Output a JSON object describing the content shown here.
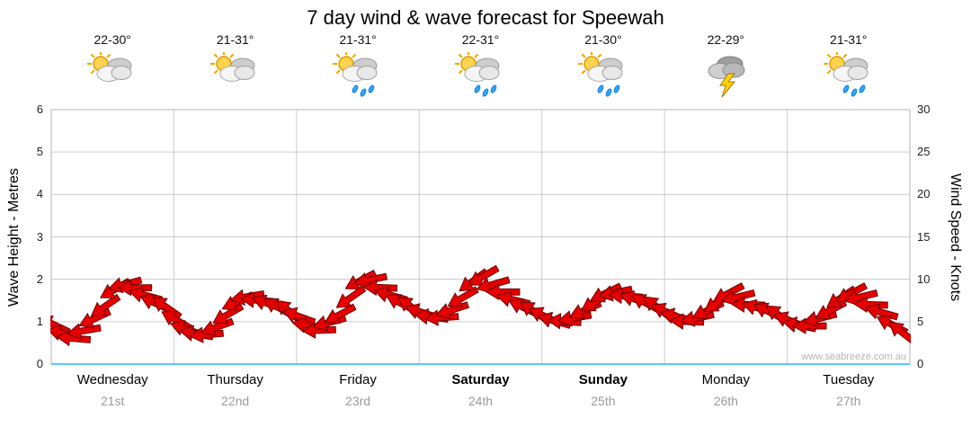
{
  "title": "7 day wind & wave forecast for Speewah",
  "chart_data": {
    "type": "wind-barb-series",
    "title": "7 day wind & wave forecast for Speewah",
    "watermark": "www.seabreeze.com.au",
    "left_axis": {
      "label": "Wave Height - Metres",
      "min": 0,
      "max": 6,
      "ticks": [
        0,
        1,
        2,
        3,
        4,
        5,
        6
      ]
    },
    "right_axis": {
      "label": "Wind Speed - Knots",
      "min": 0,
      "max": 30,
      "ticks": [
        0,
        5,
        10,
        15,
        20,
        25,
        30
      ]
    },
    "grid": true,
    "arrow_color": "#e60000",
    "arrow_outline": "#6e0000",
    "days": [
      {
        "name": "Wednesday",
        "date": "21st",
        "bold": false,
        "temps": "22-30°",
        "icon": "partly-cloudy",
        "wind_knots": [
          4.5,
          3.5,
          3,
          4,
          5.5,
          7,
          9,
          9.5,
          9,
          8,
          7,
          6.5
        ],
        "wind_dir_deg": [
          205,
          195,
          185,
          170,
          155,
          145,
          150,
          165,
          180,
          195,
          205,
          215
        ]
      },
      {
        "name": "Thursday",
        "date": "22nd",
        "bold": false,
        "temps": "21-31°",
        "icon": "partly-cloudy",
        "wind_knots": [
          5,
          4,
          3.5,
          3.5,
          4.5,
          6,
          7.5,
          8,
          7.5,
          7,
          6.5,
          6
        ],
        "wind_dir_deg": [
          210,
          200,
          190,
          175,
          160,
          150,
          155,
          170,
          185,
          200,
          210,
          220
        ]
      },
      {
        "name": "Friday",
        "date": "23rd",
        "bold": false,
        "temps": "21-31°",
        "icon": "showers",
        "wind_knots": [
          5.5,
          4.5,
          4,
          5,
          6,
          8,
          10,
          10,
          9,
          8,
          7,
          6.5
        ],
        "wind_dir_deg": [
          200,
          190,
          178,
          165,
          152,
          145,
          152,
          168,
          182,
          196,
          208,
          216
        ]
      },
      {
        "name": "Saturday",
        "date": "24th",
        "bold": true,
        "temps": "22-31°",
        "icon": "showers",
        "wind_knots": [
          6,
          5.5,
          5.5,
          6.5,
          8,
          10,
          10.5,
          9.5,
          8.5,
          7.5,
          6.5,
          6
        ],
        "wind_dir_deg": [
          198,
          188,
          176,
          162,
          150,
          144,
          150,
          164,
          180,
          194,
          206,
          214
        ]
      },
      {
        "name": "Sunday",
        "date": "25th",
        "bold": true,
        "temps": "21-30°",
        "icon": "showers",
        "wind_knots": [
          5.5,
          5,
          5,
          5.5,
          6.5,
          7.5,
          8.5,
          8.5,
          8,
          7.5,
          7,
          6.5
        ],
        "wind_dir_deg": [
          206,
          196,
          184,
          170,
          156,
          148,
          154,
          168,
          184,
          198,
          208,
          218
        ]
      },
      {
        "name": "Monday",
        "date": "26th",
        "bold": false,
        "temps": "22-29°",
        "icon": "storm",
        "wind_knots": [
          6,
          5.5,
          5,
          5.5,
          6.5,
          7.5,
          8.5,
          8,
          7,
          6.5,
          6,
          5.5
        ],
        "wind_dir_deg": [
          204,
          194,
          182,
          168,
          154,
          146,
          152,
          166,
          182,
          196,
          206,
          216
        ]
      },
      {
        "name": "Tuesday",
        "date": "27th",
        "bold": false,
        "temps": "21-31°",
        "icon": "showers",
        "wind_knots": [
          5,
          4.5,
          4.5,
          5.5,
          6.5,
          8,
          8.5,
          8,
          7,
          6,
          4.5,
          3.5
        ],
        "wind_dir_deg": [
          202,
          192,
          180,
          166,
          152,
          146,
          152,
          166,
          182,
          196,
          208,
          218
        ]
      }
    ]
  }
}
